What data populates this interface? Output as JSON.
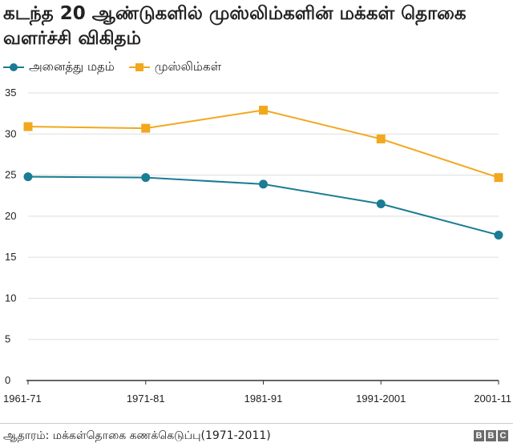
{
  "title": "கடந்த 20 ஆண்டுகளில் முஸ்லிம்களின் மக்கள் தொகை வளர்ச்சி விகிதம்",
  "source": "ஆதாரம்: மக்கள்தொகை கணக்கெடுப்பு(1971-2011)",
  "logo": [
    "B",
    "B",
    "C"
  ],
  "colors": {
    "series_1": "#1b7c94",
    "series_2": "#f2a81d",
    "grid": "#dddddd",
    "axis": "#333333"
  },
  "chart_data": {
    "type": "line",
    "title": "கடந்த 20 ஆண்டுகளில் முஸ்லிம்களின் மக்கள் தொகை வளர்ச்சி விகிதம்",
    "xlabel": "",
    "ylabel": "",
    "categories": [
      "1961-71",
      "1971-81",
      "1981-91",
      "1991-2001",
      "2001-11"
    ],
    "series": [
      {
        "name": "அனைத்து மதம்",
        "marker": "circle",
        "values": [
          24.8,
          24.7,
          23.9,
          21.5,
          17.7
        ]
      },
      {
        "name": "முஸ்லிம்கள்",
        "marker": "square",
        "values": [
          30.9,
          30.7,
          32.9,
          29.4,
          24.7
        ]
      }
    ],
    "ylim": [
      0,
      35
    ],
    "yticks": [
      0,
      5,
      10,
      15,
      20,
      25,
      30,
      35
    ],
    "grid": true,
    "legend": "top-left"
  }
}
